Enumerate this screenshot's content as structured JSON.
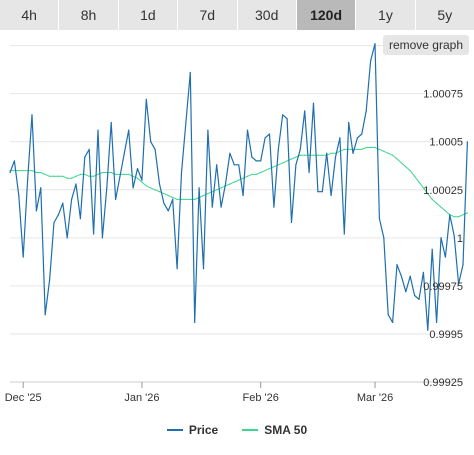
{
  "ranges": [
    {
      "label": "4h",
      "active": false
    },
    {
      "label": "8h",
      "active": false
    },
    {
      "label": "1d",
      "active": false
    },
    {
      "label": "7d",
      "active": false
    },
    {
      "label": "30d",
      "active": false
    },
    {
      "label": "120d",
      "active": true
    },
    {
      "label": "1y",
      "active": false
    },
    {
      "label": "5y",
      "active": false
    }
  ],
  "remove_graph_label": "remove graph",
  "colors": {
    "price": "#1f6fae",
    "sma": "#3dd68c",
    "grid": "#e6e6e6",
    "axis": "#cccccc"
  },
  "chart_data": {
    "type": "line",
    "title": "",
    "xlabel": "",
    "ylabel": "",
    "ylim": [
      0.99925,
      1.00105
    ],
    "xlim": [
      0,
      103
    ],
    "x_ticks": [
      {
        "x": 3,
        "label": "Dec '25"
      },
      {
        "x": 30,
        "label": "Jan '26"
      },
      {
        "x": 57,
        "label": "Feb '26"
      },
      {
        "x": 83,
        "label": "Mar '26"
      }
    ],
    "y_ticks": [
      {
        "value": 0.99925,
        "label": "0.99925"
      },
      {
        "value": 0.9995,
        "label": "0.9995"
      },
      {
        "value": 0.99975,
        "label": "0.99975"
      },
      {
        "value": 1.0,
        "label": "1"
      },
      {
        "value": 1.00025,
        "label": "1.00025"
      },
      {
        "value": 1.0005,
        "label": "1.0005"
      },
      {
        "value": 1.00075,
        "label": "1.00075"
      },
      {
        "value": 1.001,
        "label": "1.001"
      }
    ],
    "grid": true,
    "legend": "bottom-center",
    "series": [
      {
        "name": "Price",
        "values": [
          1.00034,
          1.0004,
          1.00022,
          0.9999,
          1.0003,
          1.00064,
          1.00014,
          1.00026,
          0.9996,
          0.99978,
          1.00008,
          1.00012,
          1.00018,
          1.0,
          1.0002,
          1.00028,
          1.0001,
          1.00042,
          1.00046,
          1.00002,
          1.00056,
          1.0,
          1.00026,
          1.0006,
          1.0002,
          1.00032,
          1.00044,
          1.00056,
          1.00026,
          1.00036,
          1.0003,
          1.00072,
          1.0005,
          1.00046,
          1.00028,
          1.00018,
          1.00014,
          1.0002,
          0.99984,
          1.00034,
          1.0006,
          1.00086,
          0.99956,
          1.00026,
          0.99984,
          1.00056,
          1.00016,
          1.00038,
          1.00016,
          1.00028,
          1.00044,
          1.00038,
          1.00038,
          1.00022,
          1.00056,
          1.00042,
          1.0004,
          1.0004,
          1.00052,
          1.00054,
          1.00016,
          1.00046,
          1.00064,
          1.00062,
          1.00008,
          1.00038,
          1.00046,
          1.00066,
          1.00034,
          1.0007,
          1.00024,
          1.00024,
          1.00044,
          1.00022,
          1.00042,
          1.00052,
          1.00002,
          1.0006,
          1.00044,
          1.00052,
          1.00054,
          1.00066,
          1.00092,
          1.00101,
          1.0001,
          1.0,
          0.9996,
          0.99956,
          0.99986,
          0.9998,
          0.99972,
          0.9998,
          0.9997,
          0.99968,
          0.99982,
          0.99952,
          0.99994,
          0.99956,
          1.0,
          0.9999,
          1.00012,
          1.00001,
          0.99976,
          0.99986,
          1.0005
        ]
      },
      {
        "name": "SMA 50",
        "values": [
          1.00035,
          1.00035,
          1.00035,
          1.00035,
          1.00035,
          1.00035,
          1.00034,
          1.00034,
          1.00033,
          1.00032,
          1.00032,
          1.00032,
          1.00032,
          1.00031,
          1.00031,
          1.00032,
          1.00033,
          1.00033,
          1.00032,
          1.00032,
          1.00033,
          1.00034,
          1.00034,
          1.00034,
          1.00033,
          1.00033,
          1.00033,
          1.00033,
          1.00032,
          1.00031,
          1.00029,
          1.00027,
          1.00026,
          1.00025,
          1.00024,
          1.00023,
          1.00022,
          1.00021,
          1.0002,
          1.0002,
          1.0002,
          1.0002,
          1.0002,
          1.00021,
          1.00022,
          1.00023,
          1.00024,
          1.00025,
          1.00026,
          1.00027,
          1.00028,
          1.00029,
          1.0003,
          1.00031,
          1.00032,
          1.00033,
          1.00033,
          1.00034,
          1.00035,
          1.00036,
          1.00037,
          1.00038,
          1.00039,
          1.0004,
          1.00041,
          1.00042,
          1.00043,
          1.00043,
          1.00043,
          1.00043,
          1.00043,
          1.00043,
          1.00043,
          1.00044,
          1.00044,
          1.00045,
          1.00046,
          1.00046,
          1.00046,
          1.00046,
          1.00046,
          1.00047,
          1.00047,
          1.00047,
          1.00046,
          1.00045,
          1.00044,
          1.00043,
          1.00041,
          1.00039,
          1.00037,
          1.00035,
          1.00032,
          1.00029,
          1.00026,
          1.00023,
          1.0002,
          1.00018,
          1.00016,
          1.00014,
          1.00012,
          1.00011,
          1.00011,
          1.00012,
          1.00013
        ]
      }
    ]
  }
}
